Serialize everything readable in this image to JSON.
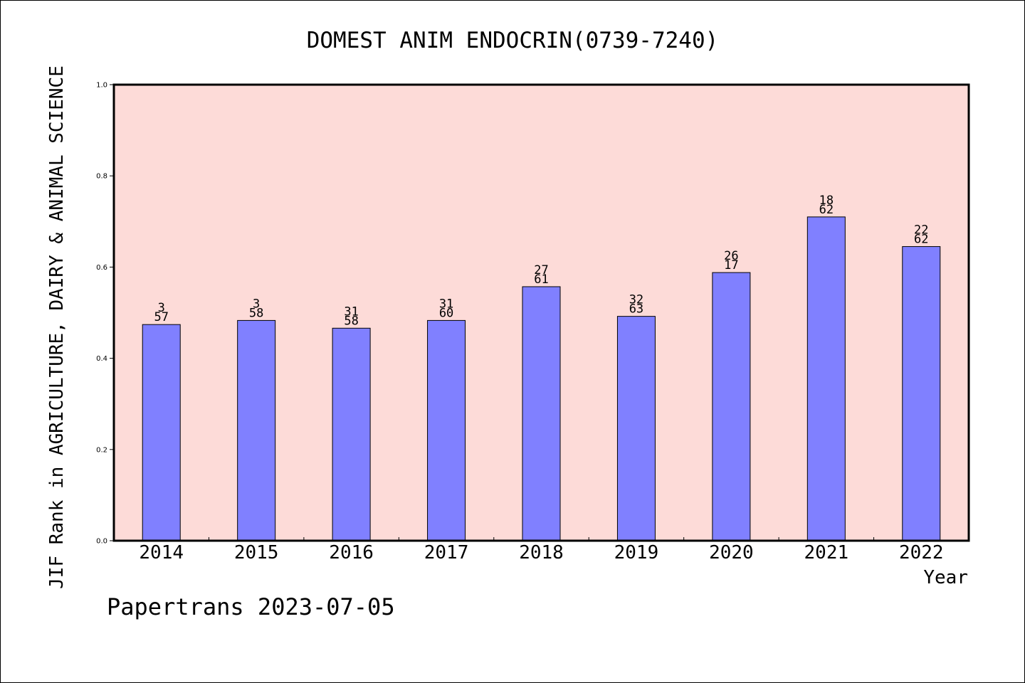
{
  "chart_data": {
    "type": "bar",
    "title": "DOMEST ANIM ENDOCRIN(0739-7240)",
    "xlabel": "Year",
    "ylabel": "JIF Rank in AGRICULTURE, DAIRY & ANIMAL SCIENCE",
    "categories": [
      "2014",
      "2015",
      "2016",
      "2017",
      "2018",
      "2019",
      "2020",
      "2021",
      "2022"
    ],
    "values": [
      0.474,
      0.483,
      0.466,
      0.483,
      0.557,
      0.492,
      0.588,
      0.71,
      0.645
    ],
    "bar_labels": [
      [
        "3",
        "57"
      ],
      [
        "3",
        "58"
      ],
      [
        "31",
        "58"
      ],
      [
        "31",
        "60"
      ],
      [
        "27",
        "61"
      ],
      [
        "32",
        "63"
      ],
      [
        "26",
        "17"
      ],
      [
        "18",
        "62"
      ],
      [
        "22",
        "62"
      ]
    ],
    "ylim": [
      0,
      1.0
    ],
    "yticks": [
      "0.0",
      "0.2",
      "0.4",
      "0.6",
      "0.8",
      "1.0"
    ],
    "grid": false,
    "colors": {
      "bar": "#8080ff",
      "plot_background": "#fddbd8",
      "axis": "#000000"
    }
  },
  "footer": "Papertrans 2023-07-05"
}
